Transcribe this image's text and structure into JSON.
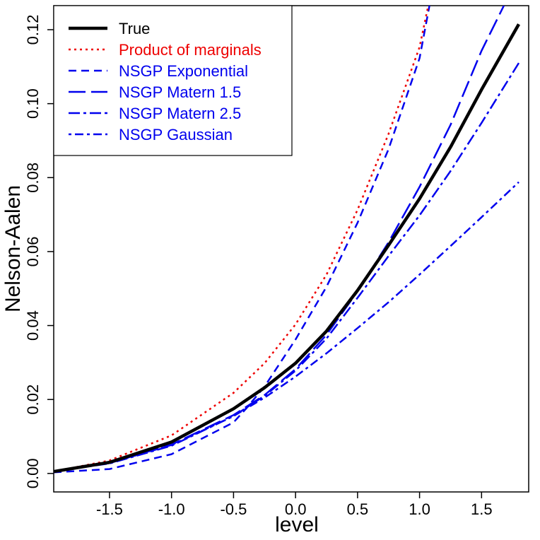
{
  "chart_data": {
    "type": "line",
    "title": "",
    "xlabel": "level",
    "ylabel": "Nelson-Aalen",
    "xlim": [
      -1.95,
      1.88
    ],
    "ylim": [
      -0.005,
      0.1265
    ],
    "xticks": [
      -1.5,
      -1.0,
      -0.5,
      0.0,
      0.5,
      1.0,
      1.5
    ],
    "xtick_labels": [
      "-1.5",
      "-1.0",
      "-0.5",
      "0.0",
      "0.5",
      "1.0",
      "1.5"
    ],
    "yticks": [
      0.0,
      0.02,
      0.04,
      0.06,
      0.08,
      0.1,
      0.12
    ],
    "ytick_labels": [
      "0.00",
      "0.02",
      "0.04",
      "0.06",
      "0.08",
      "0.10",
      "0.12"
    ],
    "grid": false,
    "legend_position": "top-left",
    "series": [
      {
        "name": "True",
        "color": "#000000",
        "dash": "solid",
        "width": 4.5,
        "x": [
          -1.95,
          -1.5,
          -1.0,
          -0.5,
          -0.25,
          0.0,
          0.25,
          0.5,
          0.75,
          1.0,
          1.25,
          1.5,
          1.8
        ],
        "y": [
          0.0005,
          0.003,
          0.0085,
          0.0175,
          0.0232,
          0.0298,
          0.0385,
          0.0495,
          0.0617,
          0.0743,
          0.0883,
          0.1038,
          0.1215
        ]
      },
      {
        "name": "Product of marginals",
        "color": "#ee0000",
        "dash": "dotted",
        "width": 2.5,
        "x": [
          -1.95,
          -1.5,
          -1.0,
          -0.5,
          -0.25,
          0.0,
          0.25,
          0.5,
          0.75,
          1.0,
          1.07
        ],
        "y": [
          0.0005,
          0.0035,
          0.0103,
          0.0218,
          0.0298,
          0.0403,
          0.0538,
          0.0713,
          0.0918,
          0.1153,
          0.1265
        ]
      },
      {
        "name": "NSGP Exponential",
        "color": "#0000ee",
        "dash": "short-dash",
        "width": 2.5,
        "x": [
          -1.95,
          -1.5,
          -1.0,
          -0.5,
          -0.4,
          -0.25,
          0.0,
          0.25,
          0.5,
          0.75,
          1.0,
          1.08
        ],
        "y": [
          0.0003,
          0.0012,
          0.0052,
          0.0138,
          0.0175,
          0.0235,
          0.0362,
          0.0505,
          0.0678,
          0.0877,
          0.1123,
          0.1265
        ]
      },
      {
        "name": "NSGP Matern 1.5",
        "color": "#0000ee",
        "dash": "long-dash",
        "width": 2.5,
        "x": [
          -1.95,
          -1.5,
          -1.0,
          -0.5,
          -0.25,
          0.0,
          0.25,
          0.5,
          0.75,
          1.0,
          1.25,
          1.5,
          1.68
        ],
        "y": [
          0.0005,
          0.0028,
          0.0078,
          0.0158,
          0.0212,
          0.0282,
          0.0375,
          0.0492,
          0.0625,
          0.0775,
          0.0943,
          0.1143,
          0.1265
        ]
      },
      {
        "name": "NSGP Matern 2.5",
        "color": "#0000ee",
        "dash": "dash-dot",
        "width": 2.5,
        "x": [
          -1.95,
          -1.5,
          -1.0,
          -0.5,
          -0.25,
          0.0,
          0.25,
          0.5,
          0.75,
          1.0,
          1.25,
          1.5,
          1.8
        ],
        "y": [
          0.0005,
          0.0027,
          0.0075,
          0.0155,
          0.021,
          0.0278,
          0.0365,
          0.0475,
          0.0588,
          0.0698,
          0.0818,
          0.0948,
          0.111
        ]
      },
      {
        "name": "NSGP Gaussian",
        "color": "#0000ee",
        "dash": "dot-dash",
        "width": 2.5,
        "x": [
          -1.95,
          -1.5,
          -1.0,
          -0.5,
          -0.25,
          0.0,
          0.25,
          0.5,
          0.75,
          1.0,
          1.25,
          1.5,
          1.8
        ],
        "y": [
          0.0005,
          0.0028,
          0.0077,
          0.0155,
          0.0205,
          0.0262,
          0.0325,
          0.0393,
          0.0463,
          0.0538,
          0.0615,
          0.0693,
          0.0788
        ]
      }
    ]
  }
}
